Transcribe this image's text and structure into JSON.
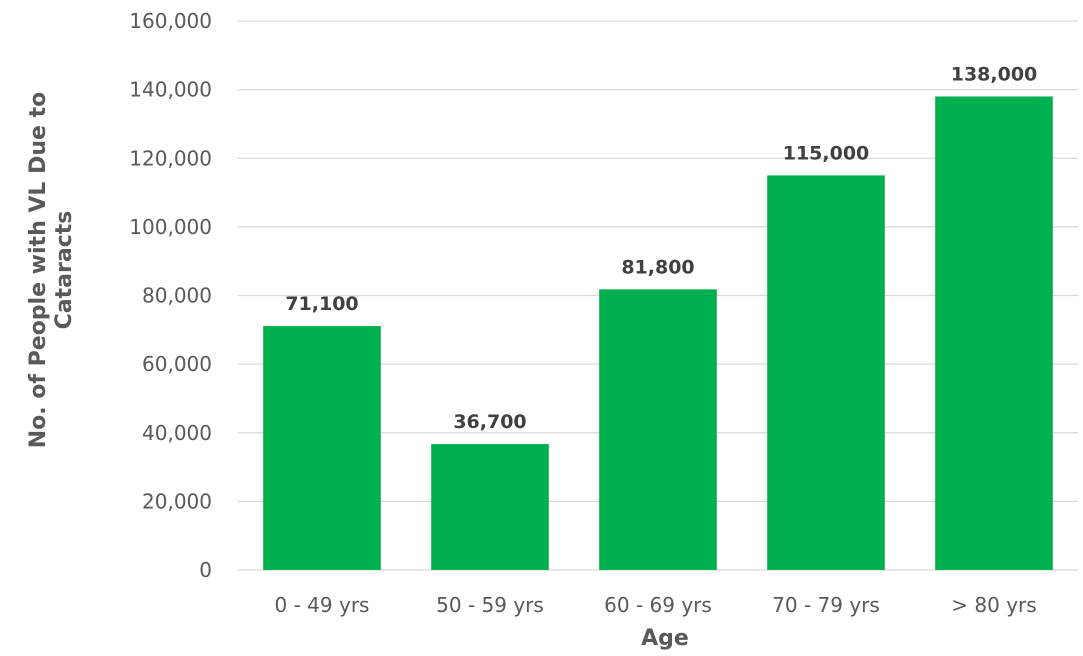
{
  "chart_data": {
    "type": "bar",
    "categories": [
      "0 - 49 yrs",
      "50 - 59 yrs",
      "60 - 69 yrs",
      "70 - 79 yrs",
      "> 80 yrs"
    ],
    "values": [
      71100,
      36700,
      81800,
      115000,
      138000
    ],
    "data_labels": [
      "71,100",
      "36,700",
      "81,800",
      "115,000",
      "138,000"
    ],
    "xlabel": "Age",
    "ylabel_lines": [
      "No. of People with VL Due to",
      "Cataracts"
    ],
    "ylim": [
      0,
      160000
    ],
    "y_ticks": [
      0,
      20000,
      40000,
      60000,
      80000,
      100000,
      120000,
      140000,
      160000
    ],
    "y_tick_labels": [
      "0",
      "20,000",
      "40,000",
      "60,000",
      "80,000",
      "100,000",
      "120,000",
      "140,000",
      "160,000"
    ],
    "grid": true,
    "legend": "none",
    "colors": {
      "bar": "#00B050",
      "grid": "#D9D9D9",
      "tick_text": "#595959",
      "data_label_text": "#404040"
    }
  }
}
